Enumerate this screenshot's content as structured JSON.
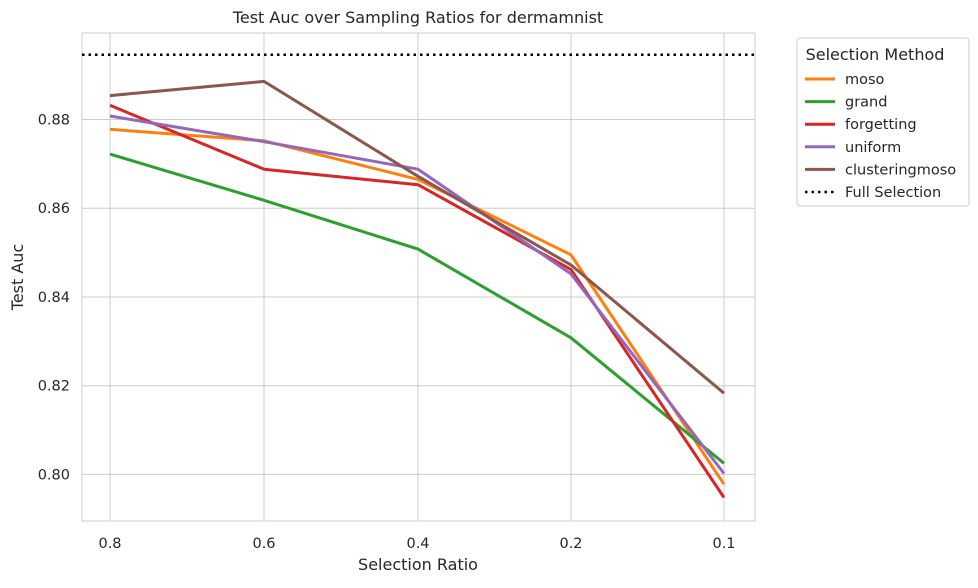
{
  "chart_data": {
    "type": "line",
    "title": "Test Auc over Sampling Ratios for dermamnist",
    "xlabel": "Selection Ratio",
    "ylabel": "Test Auc",
    "x": [
      "0.8",
      "0.6",
      "0.4",
      "0.2",
      "0.1"
    ],
    "yticks": [
      "0.80",
      "0.82",
      "0.84",
      "0.86",
      "0.88"
    ],
    "ytick_values": [
      0.8,
      0.82,
      0.84,
      0.86,
      0.88
    ],
    "ylim": [
      0.7895,
      0.8995
    ],
    "grid": true,
    "legend": {
      "title": "Selection Method",
      "placement": "outside-top-right"
    },
    "series": [
      {
        "name": "moso",
        "color": "#ff7f0e",
        "values": [
          0.8778,
          0.8752,
          0.8665,
          0.8495,
          0.7978
        ]
      },
      {
        "name": "grand",
        "color": "#2ca02c",
        "values": [
          0.8722,
          0.8618,
          0.8508,
          0.8308,
          0.8025
        ]
      },
      {
        "name": "forgetting",
        "color": "#d62728",
        "values": [
          0.8832,
          0.8688,
          0.8653,
          0.8462,
          0.7948
        ]
      },
      {
        "name": "uniform",
        "color": "#9467bd",
        "values": [
          0.8808,
          0.875,
          0.8688,
          0.8452,
          0.8002
        ]
      },
      {
        "name": "clusteringmoso",
        "color": "#8c564b",
        "values": [
          0.8854,
          0.8886,
          0.8672,
          0.8472,
          0.8183
        ]
      }
    ],
    "reference_line": {
      "name": "Full Selection",
      "color": "#000000",
      "style": "dotted",
      "value": 0.8946
    }
  }
}
